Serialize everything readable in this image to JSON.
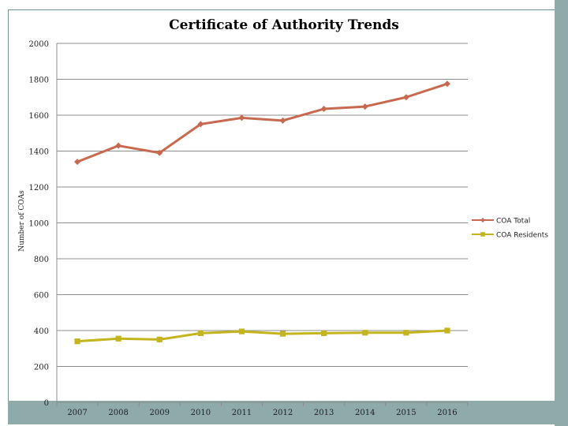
{
  "chart_data": {
    "type": "line",
    "title": "Certificate of Authority Trends",
    "xlabel": "",
    "ylabel": "Number of COAs",
    "categories": [
      "2007",
      "2008",
      "2009",
      "2010",
      "2011",
      "2012",
      "2013",
      "2014",
      "2015",
      "2016"
    ],
    "ylim": [
      0,
      2000
    ],
    "yticks": [
      "0",
      "200",
      "400",
      "600",
      "800",
      "1000",
      "1200",
      "1400",
      "1600",
      "1800",
      "2000"
    ],
    "grid": "horizontal",
    "legend_position": "right",
    "series": [
      {
        "name": "COA Total",
        "color": "#c8694f",
        "marker": "diamond",
        "values": [
          1340,
          1430,
          1390,
          1550,
          1585,
          1570,
          1635,
          1648,
          1700,
          1775
        ]
      },
      {
        "name": "COA Residents",
        "color": "#c4b51e",
        "marker": "square",
        "values": [
          340,
          355,
          350,
          385,
          395,
          382,
          385,
          388,
          388,
          400
        ]
      }
    ]
  }
}
